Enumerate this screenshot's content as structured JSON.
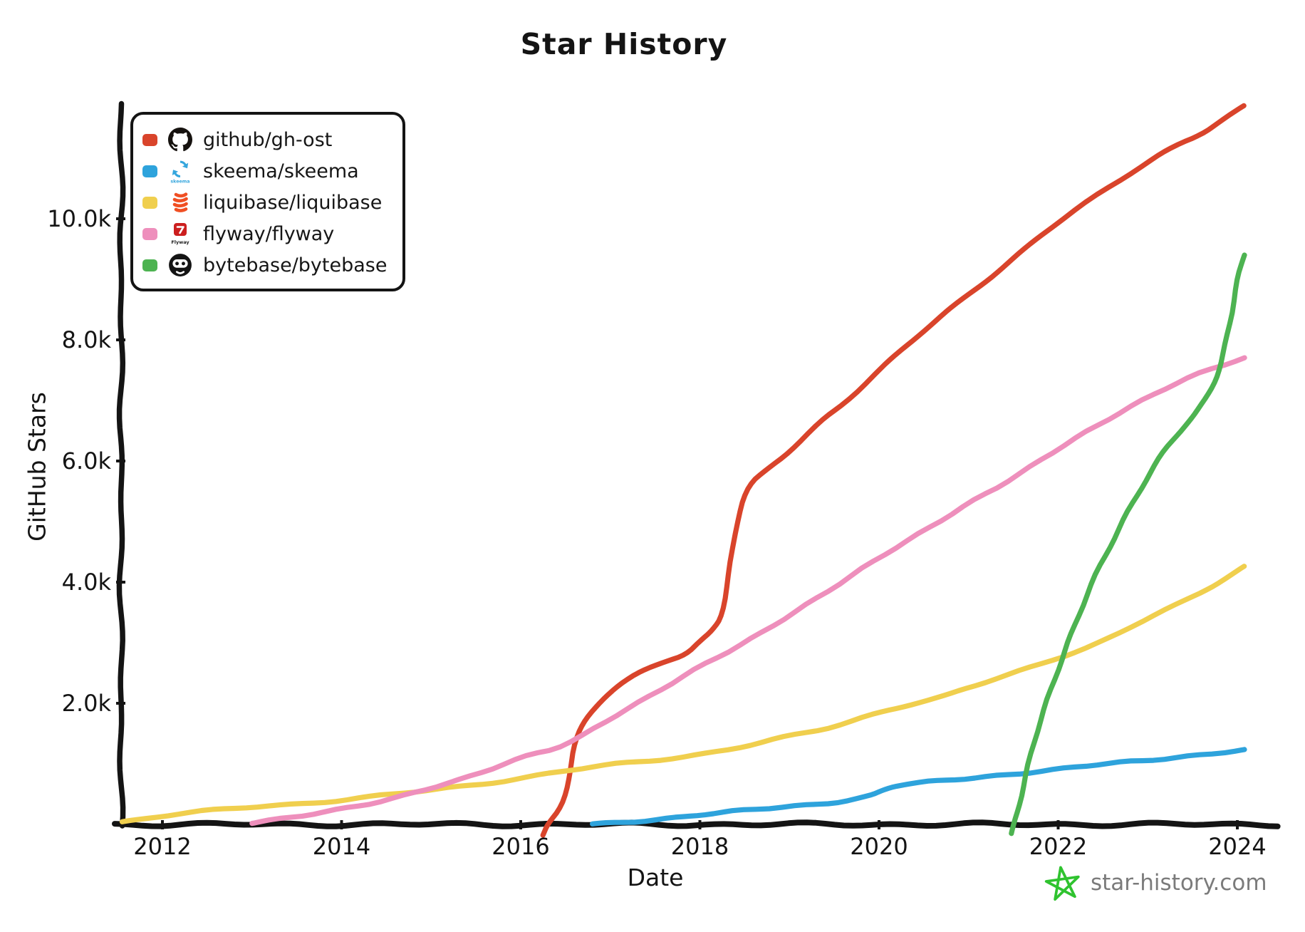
{
  "chart_data": {
    "type": "line",
    "title": "Star History",
    "xlabel": "Date",
    "ylabel": "GitHub Stars",
    "xlim": [
      2011.5,
      2024.45
    ],
    "ylim": [
      0,
      11900
    ],
    "grid": false,
    "legend_position": "top-left",
    "axis_color": "#141414",
    "x_ticks": [
      {
        "value": 2012,
        "label": "2012"
      },
      {
        "value": 2014,
        "label": "2014"
      },
      {
        "value": 2016,
        "label": "2016"
      },
      {
        "value": 2018,
        "label": "2018"
      },
      {
        "value": 2020,
        "label": "2020"
      },
      {
        "value": 2022,
        "label": "2022"
      },
      {
        "value": 2024,
        "label": "2024"
      }
    ],
    "y_ticks": [
      {
        "value": 2000,
        "label": "2.0k"
      },
      {
        "value": 4000,
        "label": "4.0k"
      },
      {
        "value": 6000,
        "label": "6.0k"
      },
      {
        "value": 8000,
        "label": "8.0k"
      },
      {
        "value": 10000,
        "label": "10.0k"
      }
    ],
    "series": [
      {
        "name": "github/gh-ost",
        "color": "#d9442b",
        "icon": "github-octocat",
        "points": [
          [
            2016.25,
            -180
          ],
          [
            2016.3,
            0
          ],
          [
            2016.45,
            300
          ],
          [
            2016.55,
            800
          ],
          [
            2016.62,
            1400
          ],
          [
            2016.72,
            1750
          ],
          [
            2016.9,
            2050
          ],
          [
            2017.1,
            2300
          ],
          [
            2017.35,
            2550
          ],
          [
            2017.6,
            2700
          ],
          [
            2017.85,
            2800
          ],
          [
            2018.0,
            3000
          ],
          [
            2018.15,
            3200
          ],
          [
            2018.25,
            3450
          ],
          [
            2018.33,
            4200
          ],
          [
            2018.42,
            5150
          ],
          [
            2018.55,
            5600
          ],
          [
            2018.75,
            5850
          ],
          [
            2019.0,
            6150
          ],
          [
            2019.35,
            6650
          ],
          [
            2019.6,
            6950
          ],
          [
            2020.0,
            7500
          ],
          [
            2020.5,
            8150
          ],
          [
            2021.0,
            8750
          ],
          [
            2021.5,
            9350
          ],
          [
            2022.0,
            9950
          ],
          [
            2022.5,
            10450
          ],
          [
            2023.0,
            10950
          ],
          [
            2023.3,
            11200
          ],
          [
            2023.6,
            11400
          ],
          [
            2023.8,
            11600
          ],
          [
            2024.08,
            11850
          ]
        ]
      },
      {
        "name": "skeema/skeema",
        "color": "#2ea3dc",
        "icon": "skeema-sync-arrows",
        "points": [
          [
            2016.8,
            0
          ],
          [
            2017.2,
            40
          ],
          [
            2017.7,
            110
          ],
          [
            2018.0,
            160
          ],
          [
            2018.4,
            215
          ],
          [
            2019.0,
            295
          ],
          [
            2019.5,
            365
          ],
          [
            2019.9,
            460
          ],
          [
            2020.05,
            570
          ],
          [
            2020.2,
            645
          ],
          [
            2020.6,
            705
          ],
          [
            2021.0,
            765
          ],
          [
            2021.5,
            835
          ],
          [
            2022.0,
            905
          ],
          [
            2022.5,
            995
          ],
          [
            2023.0,
            1065
          ],
          [
            2023.5,
            1135
          ],
          [
            2024.08,
            1225
          ]
        ]
      },
      {
        "name": "liquibase/liquibase",
        "color": "#f0cf4e",
        "icon": "liquibase-stack",
        "points": [
          [
            2011.55,
            40
          ],
          [
            2012.0,
            150
          ],
          [
            2012.5,
            225
          ],
          [
            2013.0,
            285
          ],
          [
            2013.5,
            335
          ],
          [
            2014.0,
            405
          ],
          [
            2014.5,
            485
          ],
          [
            2015.0,
            565
          ],
          [
            2015.5,
            655
          ],
          [
            2016.0,
            765
          ],
          [
            2016.5,
            885
          ],
          [
            2017.0,
            985
          ],
          [
            2017.5,
            1060
          ],
          [
            2018.0,
            1155
          ],
          [
            2018.5,
            1285
          ],
          [
            2019.0,
            1455
          ],
          [
            2019.5,
            1615
          ],
          [
            2020.0,
            1855
          ],
          [
            2020.3,
            1965
          ],
          [
            2020.7,
            2090
          ],
          [
            2021.0,
            2255
          ],
          [
            2021.5,
            2505
          ],
          [
            2022.0,
            2755
          ],
          [
            2022.5,
            3005
          ],
          [
            2023.0,
            3405
          ],
          [
            2023.5,
            3755
          ],
          [
            2024.08,
            4255
          ]
        ]
      },
      {
        "name": "flyway/flyway",
        "color": "#ee8fbc",
        "icon": "flyway-badge",
        "points": [
          [
            2013.0,
            20
          ],
          [
            2013.5,
            120
          ],
          [
            2014.0,
            255
          ],
          [
            2014.5,
            405
          ],
          [
            2015.0,
            605
          ],
          [
            2015.5,
            805
          ],
          [
            2016.0,
            1105
          ],
          [
            2016.5,
            1305
          ],
          [
            2017.0,
            1755
          ],
          [
            2017.5,
            2155
          ],
          [
            2018.0,
            2605
          ],
          [
            2018.5,
            3005
          ],
          [
            2019.0,
            3455
          ],
          [
            2019.5,
            3905
          ],
          [
            2020.0,
            4405
          ],
          [
            2020.5,
            4855
          ],
          [
            2021.0,
            5305
          ],
          [
            2021.5,
            5705
          ],
          [
            2022.0,
            6205
          ],
          [
            2022.5,
            6655
          ],
          [
            2023.0,
            7055
          ],
          [
            2023.5,
            7405
          ],
          [
            2024.08,
            7705
          ]
        ]
      },
      {
        "name": "bytebase/bytebase",
        "color": "#4db351",
        "icon": "bytebase-astronaut",
        "points": [
          [
            2021.48,
            -150
          ],
          [
            2021.52,
            100
          ],
          [
            2021.62,
            700
          ],
          [
            2021.75,
            1450
          ],
          [
            2021.9,
            2150
          ],
          [
            2022.05,
            2800
          ],
          [
            2022.2,
            3350
          ],
          [
            2022.4,
            4050
          ],
          [
            2022.6,
            4650
          ],
          [
            2022.8,
            5250
          ],
          [
            2023.0,
            5750
          ],
          [
            2023.2,
            6200
          ],
          [
            2023.4,
            6550
          ],
          [
            2023.55,
            6800
          ],
          [
            2023.7,
            7150
          ],
          [
            2023.8,
            7550
          ],
          [
            2023.9,
            8150
          ],
          [
            2024.0,
            8950
          ],
          [
            2024.08,
            9400
          ]
        ]
      }
    ]
  },
  "watermark": {
    "text": "star-history.com",
    "star_color": "#2fc32f",
    "text_color": "#7b7b7b"
  }
}
